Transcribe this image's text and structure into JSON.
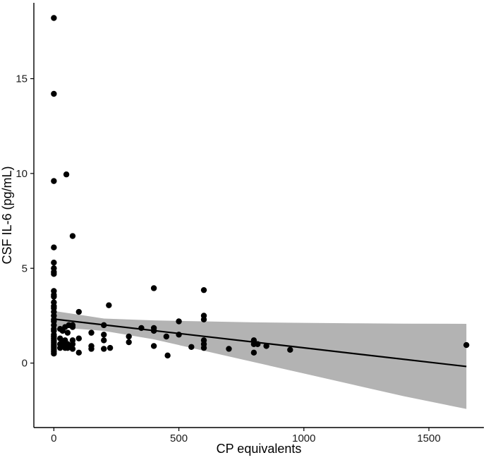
{
  "chart_data": {
    "type": "scatter",
    "title": "",
    "xlabel": "CP equivalents",
    "ylabel": "CSF IL-6 (pg/mL)",
    "xlim": [
      -80,
      1720
    ],
    "ylim": [
      -3.4,
      19.0
    ],
    "xticks": [
      0,
      500,
      1000,
      1500
    ],
    "yticks": [
      0,
      5,
      10,
      15
    ],
    "xtick_labels": [
      "0",
      "500",
      "1000",
      "1500"
    ],
    "ytick_labels": [
      "0",
      "5",
      "10",
      "15"
    ],
    "grid": false,
    "legend": "none",
    "colors": {
      "points": "#000000",
      "line": "#000000",
      "band": "#b3b3b3",
      "axis": "#000000"
    },
    "points": [
      {
        "x": 0,
        "y": 18.2
      },
      {
        "x": 0,
        "y": 14.2
      },
      {
        "x": 0,
        "y": 9.6
      },
      {
        "x": 0,
        "y": 6.1
      },
      {
        "x": 0,
        "y": 5.3
      },
      {
        "x": 0,
        "y": 5.0
      },
      {
        "x": 0,
        "y": 4.8
      },
      {
        "x": 0,
        "y": 4.7
      },
      {
        "x": 0,
        "y": 3.8
      },
      {
        "x": 0,
        "y": 3.6
      },
      {
        "x": 0,
        "y": 3.5
      },
      {
        "x": 0,
        "y": 3.2
      },
      {
        "x": 0,
        "y": 3.0
      },
      {
        "x": 0,
        "y": 2.9
      },
      {
        "x": 0,
        "y": 2.7
      },
      {
        "x": 0,
        "y": 2.5
      },
      {
        "x": 0,
        "y": 2.3
      },
      {
        "x": 0,
        "y": 2.2
      },
      {
        "x": 0,
        "y": 2.0
      },
      {
        "x": 0,
        "y": 1.8
      },
      {
        "x": 0,
        "y": 1.7
      },
      {
        "x": 0,
        "y": 1.5
      },
      {
        "x": 0,
        "y": 1.4
      },
      {
        "x": 0,
        "y": 1.3
      },
      {
        "x": 0,
        "y": 1.2
      },
      {
        "x": 0,
        "y": 1.1
      },
      {
        "x": 0,
        "y": 1.0
      },
      {
        "x": 0,
        "y": 0.9
      },
      {
        "x": 0,
        "y": 0.8
      },
      {
        "x": 0,
        "y": 0.7
      },
      {
        "x": 0,
        "y": 0.6
      },
      {
        "x": 0,
        "y": 0.5
      },
      {
        "x": 25,
        "y": 1.8
      },
      {
        "x": 25,
        "y": 1.3
      },
      {
        "x": 25,
        "y": 1.0
      },
      {
        "x": 25,
        "y": 0.8
      },
      {
        "x": 35,
        "y": 1.7
      },
      {
        "x": 35,
        "y": 1.1
      },
      {
        "x": 35,
        "y": 0.9
      },
      {
        "x": 45,
        "y": 1.9
      },
      {
        "x": 45,
        "y": 1.2
      },
      {
        "x": 45,
        "y": 0.8
      },
      {
        "x": 50,
        "y": 9.95
      },
      {
        "x": 55,
        "y": 1.6
      },
      {
        "x": 55,
        "y": 1.0
      },
      {
        "x": 55,
        "y": 0.8
      },
      {
        "x": 60,
        "y": 2.0
      },
      {
        "x": 60,
        "y": 0.9
      },
      {
        "x": 75,
        "y": 6.7
      },
      {
        "x": 75,
        "y": 2.0
      },
      {
        "x": 75,
        "y": 1.9
      },
      {
        "x": 75,
        "y": 1.2
      },
      {
        "x": 75,
        "y": 1.0
      },
      {
        "x": 75,
        "y": 0.75
      },
      {
        "x": 100,
        "y": 2.7
      },
      {
        "x": 100,
        "y": 1.3
      },
      {
        "x": 100,
        "y": 0.55
      },
      {
        "x": 150,
        "y": 1.6
      },
      {
        "x": 150,
        "y": 0.9
      },
      {
        "x": 150,
        "y": 0.75
      },
      {
        "x": 200,
        "y": 2.0
      },
      {
        "x": 200,
        "y": 1.5
      },
      {
        "x": 200,
        "y": 1.2
      },
      {
        "x": 200,
        "y": 0.75
      },
      {
        "x": 220,
        "y": 3.05
      },
      {
        "x": 225,
        "y": 0.8
      },
      {
        "x": 300,
        "y": 1.4
      },
      {
        "x": 300,
        "y": 1.1
      },
      {
        "x": 350,
        "y": 1.85
      },
      {
        "x": 400,
        "y": 3.95
      },
      {
        "x": 400,
        "y": 1.85
      },
      {
        "x": 400,
        "y": 1.7
      },
      {
        "x": 400,
        "y": 0.9
      },
      {
        "x": 450,
        "y": 1.4
      },
      {
        "x": 455,
        "y": 0.4
      },
      {
        "x": 500,
        "y": 2.2
      },
      {
        "x": 500,
        "y": 1.5
      },
      {
        "x": 550,
        "y": 0.85
      },
      {
        "x": 600,
        "y": 3.85
      },
      {
        "x": 600,
        "y": 2.5
      },
      {
        "x": 600,
        "y": 2.3
      },
      {
        "x": 600,
        "y": 1.2
      },
      {
        "x": 600,
        "y": 1.0
      },
      {
        "x": 600,
        "y": 0.8
      },
      {
        "x": 700,
        "y": 0.75
      },
      {
        "x": 800,
        "y": 1.2
      },
      {
        "x": 800,
        "y": 1.0
      },
      {
        "x": 800,
        "y": 0.55
      },
      {
        "x": 815,
        "y": 1.0
      },
      {
        "x": 850,
        "y": 0.9
      },
      {
        "x": 945,
        "y": 0.7
      },
      {
        "x": 1650,
        "y": 0.95
      }
    ],
    "regression": {
      "x": [
        0,
        1650
      ],
      "y": [
        2.32,
        -0.18
      ]
    },
    "confidence_band": {
      "x": [
        0,
        200,
        400,
        600,
        800,
        1000,
        1200,
        1400,
        1650
      ],
      "upper": [
        2.75,
        2.35,
        2.25,
        2.2,
        2.15,
        2.12,
        2.1,
        2.08,
        2.07
      ],
      "lower": [
        1.9,
        1.7,
        1.25,
        0.65,
        0.05,
        -0.55,
        -1.15,
        -1.75,
        -2.42
      ]
    }
  }
}
